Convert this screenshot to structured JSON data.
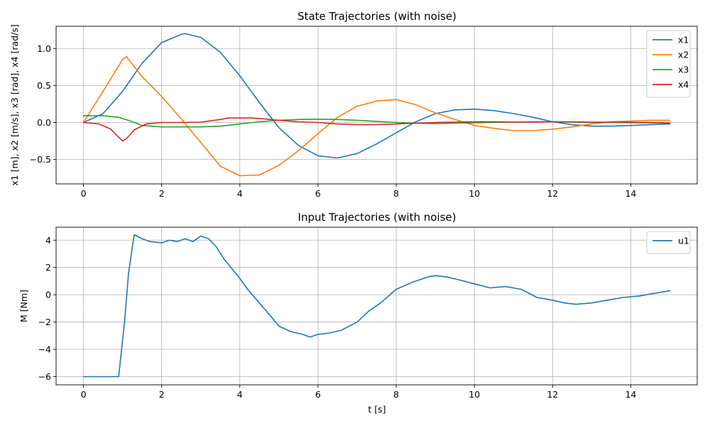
{
  "colors": {
    "x1": "#1f77b4",
    "x2": "#ff7f0e",
    "x3": "#2ca02c",
    "x4": "#d62728",
    "u1": "#1f77b4"
  },
  "chart_data": [
    {
      "type": "line",
      "title": "State Trajectories (with noise)",
      "xlabel": "",
      "ylabel": "x1 [m], x2 [m/s], x3 [rad], x4 [rad/s]",
      "xlim": [
        -0.7,
        15.7
      ],
      "ylim": [
        -0.83,
        1.3
      ],
      "xticks": [
        0,
        2,
        4,
        6,
        8,
        10,
        12,
        14
      ],
      "yticks": [
        -0.5,
        0.0,
        0.5,
        1.0
      ],
      "ytick_labels": [
        "−0.5",
        "0.0",
        "0.5",
        "1.0"
      ],
      "grid": true,
      "legend_position": "upper-right",
      "series": [
        {
          "name": "x1",
          "color_key": "x1",
          "x": [
            0,
            0.5,
            1,
            1.5,
            2,
            2.5,
            2.6,
            3,
            3.5,
            4,
            4.5,
            5,
            5.5,
            6,
            6.5,
            7,
            7.5,
            8,
            8.5,
            9,
            9.5,
            10,
            10.5,
            11,
            11.5,
            12,
            12.5,
            13,
            13.5,
            14,
            14.5,
            15
          ],
          "y": [
            0,
            0.12,
            0.42,
            0.8,
            1.08,
            1.19,
            1.2,
            1.15,
            0.95,
            0.63,
            0.27,
            -0.07,
            -0.31,
            -0.45,
            -0.48,
            -0.42,
            -0.29,
            -0.14,
            0.01,
            0.12,
            0.17,
            0.18,
            0.16,
            0.12,
            0.07,
            0.01,
            -0.03,
            -0.05,
            -0.05,
            -0.04,
            -0.03,
            -0.02
          ]
        },
        {
          "name": "x2",
          "color_key": "x2",
          "x": [
            0,
            0.5,
            1,
            1.1,
            1.5,
            2,
            2.5,
            3,
            3.5,
            4,
            4.5,
            5,
            5.5,
            6,
            6.5,
            7,
            7.5,
            8,
            8.5,
            9,
            9.5,
            10,
            10.5,
            11,
            11.5,
            12,
            12.5,
            13,
            13.5,
            14,
            14.5,
            15
          ],
          "y": [
            0,
            0.42,
            0.85,
            0.89,
            0.62,
            0.35,
            0.05,
            -0.27,
            -0.59,
            -0.72,
            -0.71,
            -0.58,
            -0.38,
            -0.15,
            0.07,
            0.22,
            0.29,
            0.31,
            0.24,
            0.13,
            0.04,
            -0.04,
            -0.08,
            -0.11,
            -0.11,
            -0.09,
            -0.06,
            -0.02,
            0.01,
            0.02,
            0.03,
            0.03
          ]
        },
        {
          "name": "x3",
          "color_key": "x3",
          "x": [
            0,
            0.5,
            0.9,
            1.2,
            1.5,
            2,
            2.5,
            3,
            3.5,
            4,
            4.5,
            5,
            5.5,
            6,
            6.5,
            7,
            7.5,
            8,
            8.5,
            9,
            9.5,
            10,
            10.5,
            11,
            11.5,
            12,
            12.5,
            13,
            13.5,
            14,
            14.5,
            15
          ],
          "y": [
            0.09,
            0.09,
            0.07,
            0.02,
            -0.04,
            -0.06,
            -0.06,
            -0.06,
            -0.05,
            -0.02,
            0.01,
            0.03,
            0.04,
            0.045,
            0.04,
            0.03,
            0.015,
            0,
            -0.01,
            -0.015,
            -0.01,
            -0.005,
            0,
            0.005,
            0.01,
            0.01,
            0.005,
            0,
            0,
            -0.005,
            -0.005,
            -0.01
          ]
        },
        {
          "name": "x4",
          "color_key": "x4",
          "x": [
            0,
            0.4,
            0.7,
            0.9,
            1,
            1.1,
            1.3,
            1.6,
            2,
            2.5,
            3,
            3.5,
            3.7,
            4,
            4.3,
            4.6,
            5,
            5.5,
            6,
            6.5,
            7,
            7.5,
            8,
            8.5,
            9,
            9.5,
            10,
            10.5,
            11,
            11.5,
            12,
            12.5,
            13,
            13.5,
            14,
            14.5,
            15
          ],
          "y": [
            0,
            -0.02,
            -0.09,
            -0.2,
            -0.25,
            -0.22,
            -0.1,
            -0.02,
            0,
            0,
            0.005,
            0.04,
            0.06,
            0.06,
            0.06,
            0.05,
            0.03,
            0.01,
            0,
            -0.02,
            -0.03,
            -0.03,
            -0.02,
            -0.01,
            0,
            0.005,
            0.01,
            0.01,
            0.005,
            0.005,
            0.01,
            0.01,
            0.005,
            0.005,
            0.005,
            0,
            -0.005
          ]
        }
      ]
    },
    {
      "type": "line",
      "title": "Input Trajectories (with noise)",
      "xlabel": "t [s]",
      "ylabel": "M [Nm]",
      "xlim": [
        -0.7,
        15.7
      ],
      "ylim": [
        -6.6,
        4.95
      ],
      "xticks": [
        0,
        2,
        4,
        6,
        8,
        10,
        12,
        14
      ],
      "yticks": [
        -6,
        -4,
        -2,
        0,
        2,
        4
      ],
      "ytick_labels": [
        "−6",
        "−4",
        "−2",
        "0",
        "2",
        "4"
      ],
      "grid": true,
      "legend_position": "upper-right",
      "series": [
        {
          "name": "u1",
          "color_key": "u1",
          "x": [
            0,
            0.5,
            0.9,
            1.05,
            1.15,
            1.25,
            1.3,
            1.5,
            1.7,
            2,
            2.2,
            2.4,
            2.6,
            2.8,
            3,
            3.2,
            3.4,
            3.6,
            3.8,
            4,
            4.2,
            4.5,
            4.8,
            5,
            5.3,
            5.6,
            5.8,
            6,
            6.3,
            6.6,
            7,
            7.3,
            7.6,
            8,
            8.4,
            8.8,
            9,
            9.3,
            9.6,
            10,
            10.4,
            10.8,
            11.2,
            11.6,
            12,
            12.3,
            12.6,
            13,
            13.4,
            13.8,
            14.2,
            14.6,
            15
          ],
          "y": [
            -6,
            -6,
            -6,
            -2,
            1.5,
            3.5,
            4.4,
            4.1,
            3.9,
            3.8,
            4,
            3.9,
            4.1,
            3.9,
            4.3,
            4.1,
            3.5,
            2.6,
            1.9,
            1.2,
            0.4,
            -0.6,
            -1.6,
            -2.3,
            -2.7,
            -2.9,
            -3.1,
            -2.9,
            -2.8,
            -2.6,
            -2,
            -1.2,
            -0.6,
            0.4,
            0.9,
            1.3,
            1.4,
            1.3,
            1.1,
            0.8,
            0.5,
            0.6,
            0.4,
            -0.2,
            -0.4,
            -0.6,
            -0.7,
            -0.6,
            -0.4,
            -0.2,
            -0.1,
            0.1,
            0.3
          ]
        }
      ]
    }
  ]
}
